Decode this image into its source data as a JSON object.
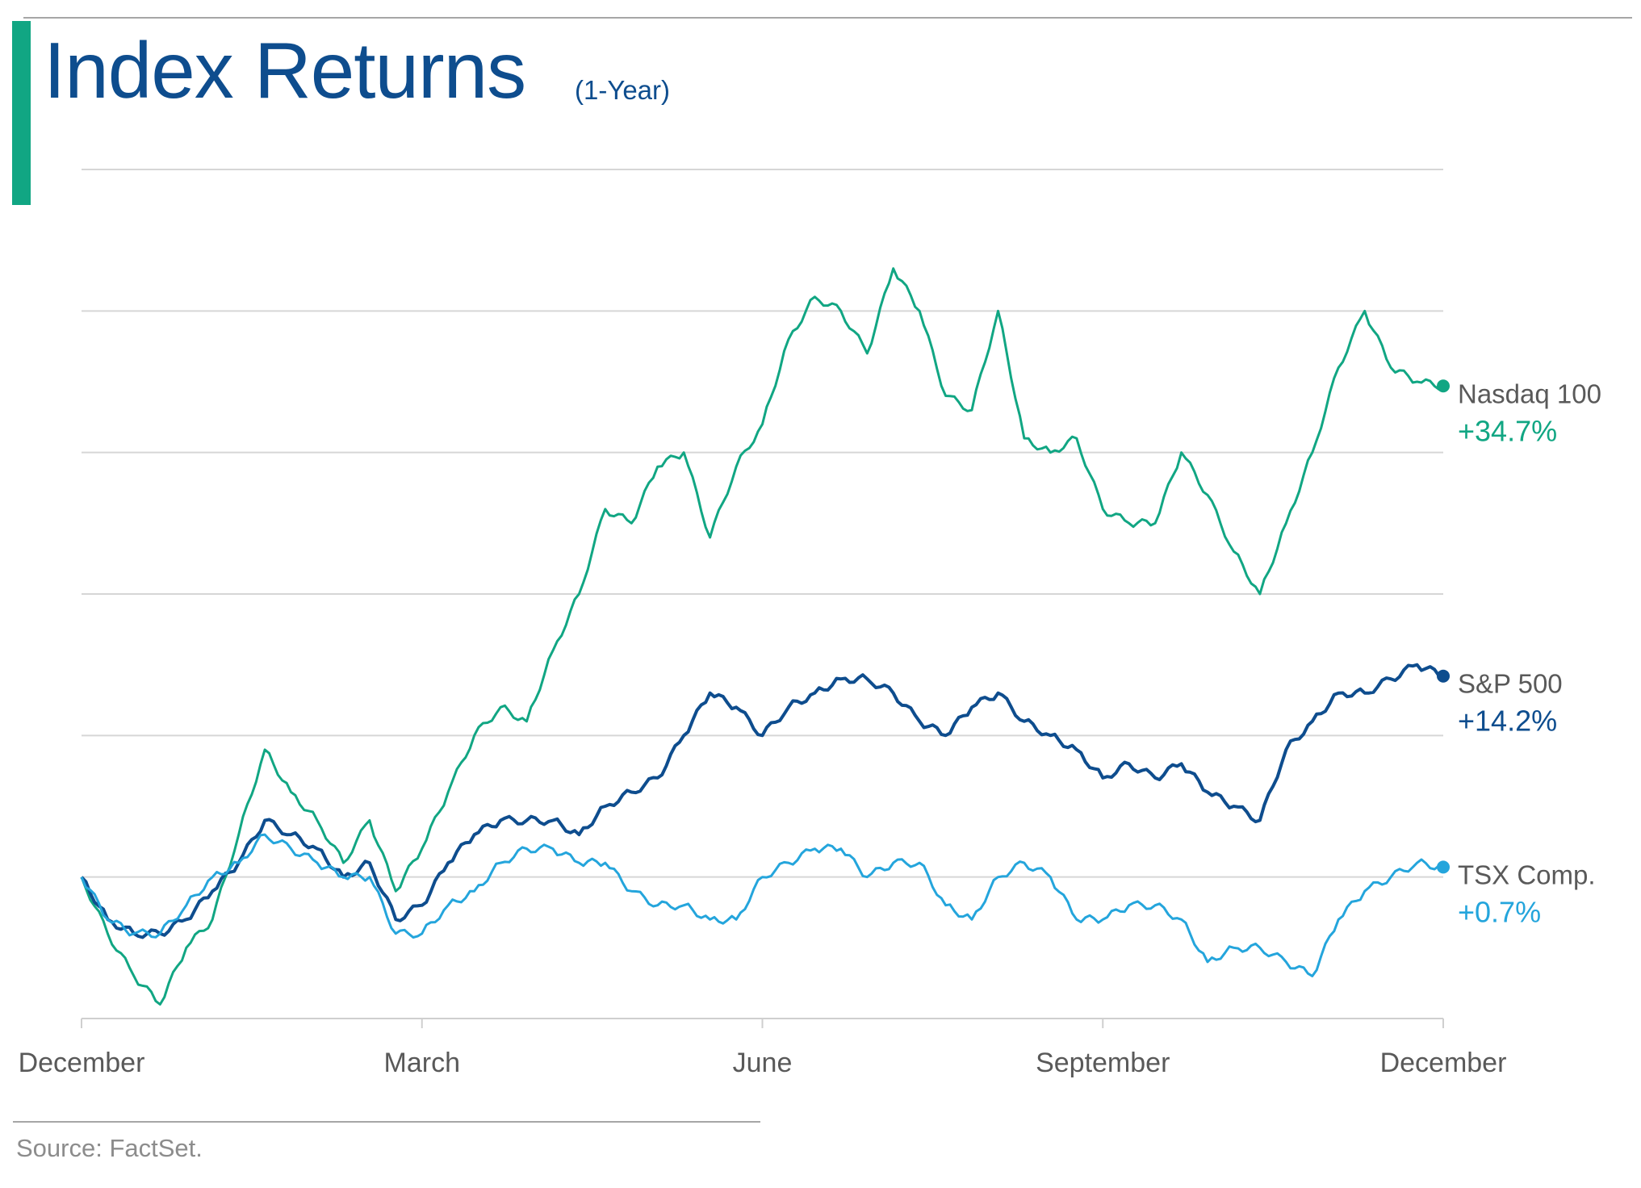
{
  "title": "Index Returns",
  "subtitle": "(1-Year)",
  "source": "Source: FactSet.",
  "chart_data": {
    "type": "line",
    "title": "Index Returns",
    "subtitle": "(1-Year)",
    "xlabel": "",
    "ylabel": "",
    "x_ticks": [
      "December",
      "March",
      "June",
      "September",
      "December"
    ],
    "x_range": [
      0,
      52
    ],
    "ylim": [
      -10,
      50
    ],
    "grid": "horizontal",
    "legend": "right end labels",
    "series": [
      {
        "name": "Nasdaq 100",
        "label": "+34.7%",
        "color": "#11a683",
        "x": [
          0,
          1,
          2,
          3,
          4,
          5,
          6,
          7,
          8,
          9,
          10,
          11,
          12,
          13,
          14,
          15,
          16,
          17,
          18,
          19,
          20,
          21,
          22,
          23,
          24,
          25,
          26,
          27,
          28,
          29,
          30,
          31,
          32,
          33,
          34,
          35,
          36,
          37,
          38,
          39,
          40,
          41,
          42,
          43,
          44,
          45,
          46,
          47,
          48,
          49,
          50,
          51,
          52
        ],
        "values": [
          0,
          -4,
          -7,
          -9,
          -5,
          -3,
          3,
          9,
          6,
          4,
          1,
          4,
          -1,
          2,
          6,
          10,
          12,
          11,
          16,
          20,
          26,
          25,
          29,
          30,
          24,
          29,
          32,
          38,
          41,
          40,
          37,
          43,
          40,
          34,
          33,
          40,
          31,
          30,
          31,
          26,
          25,
          25,
          30,
          27,
          23,
          20,
          25,
          30,
          36,
          40,
          36,
          35,
          34.7
        ]
      },
      {
        "name": "S&P 500",
        "label": "+14.2%",
        "color": "#0e4d8e",
        "x": [
          0,
          1,
          2,
          3,
          4,
          5,
          6,
          7,
          8,
          9,
          10,
          11,
          12,
          13,
          14,
          15,
          16,
          17,
          18,
          19,
          20,
          21,
          22,
          23,
          24,
          25,
          26,
          27,
          28,
          29,
          30,
          31,
          32,
          33,
          34,
          35,
          36,
          37,
          38,
          39,
          40,
          41,
          42,
          43,
          44,
          45,
          46,
          47,
          48,
          49,
          50,
          51,
          52
        ],
        "values": [
          0,
          -3,
          -4,
          -4,
          -3,
          -1,
          1,
          4,
          3,
          2,
          0,
          1,
          -3,
          -2,
          1,
          3,
          4,
          4,
          4,
          3,
          5,
          6,
          7,
          10,
          13,
          12,
          10,
          12,
          13,
          14,
          14,
          13,
          11,
          10,
          12,
          13,
          11,
          10,
          9,
          7,
          8,
          7,
          8,
          6,
          5,
          4,
          9,
          11,
          13,
          13,
          14,
          15,
          14.2
        ]
      },
      {
        "name": "TSX Comp.",
        "label": "+0.7%",
        "color": "#24a5dc",
        "x": [
          0,
          1,
          2,
          3,
          4,
          5,
          6,
          7,
          8,
          9,
          10,
          11,
          12,
          13,
          14,
          15,
          16,
          17,
          18,
          19,
          20,
          21,
          22,
          23,
          24,
          25,
          26,
          27,
          28,
          29,
          30,
          31,
          32,
          33,
          34,
          35,
          36,
          37,
          38,
          39,
          40,
          41,
          42,
          43,
          44,
          45,
          46,
          47,
          48,
          49,
          50,
          51,
          52
        ],
        "values": [
          0,
          -3,
          -4,
          -4,
          -2,
          0,
          1,
          3,
          2,
          1,
          0,
          0,
          -4,
          -4,
          -2,
          -1,
          1,
          2,
          2,
          1,
          1,
          -1,
          -2,
          -2,
          -3,
          -3,
          0,
          1,
          2,
          2,
          0,
          1,
          1,
          -2,
          -3,
          0,
          1,
          0,
          -3,
          -3,
          -2,
          -2,
          -3,
          -6,
          -5,
          -5,
          -6,
          -7,
          -3,
          -1,
          0,
          1,
          0.7
        ]
      }
    ]
  }
}
